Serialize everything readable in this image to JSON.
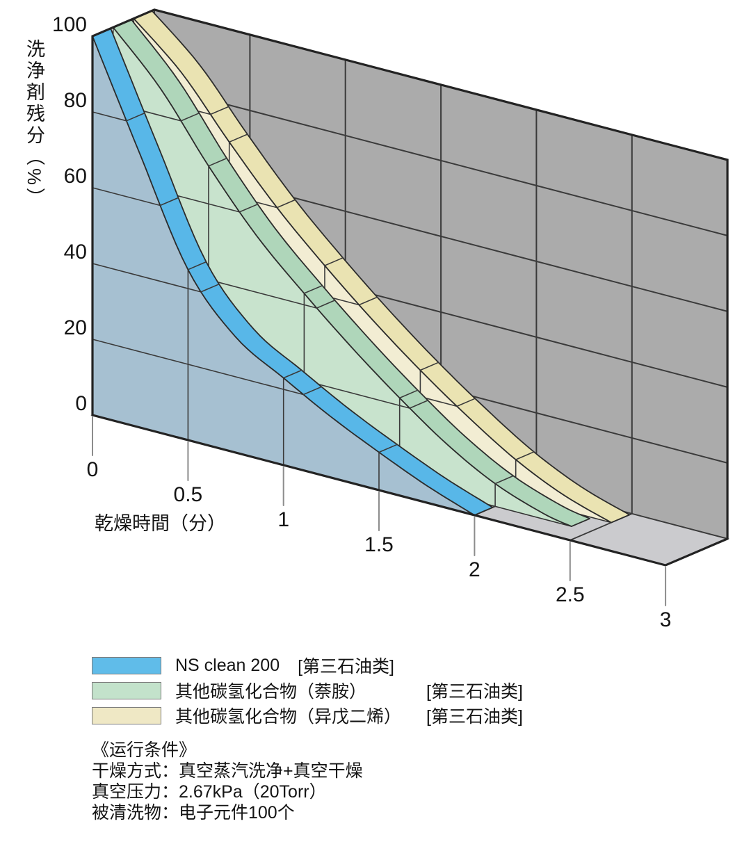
{
  "chart_data": {
    "type": "area",
    "projection": "3d-extruded-area",
    "title": "",
    "xlabel": "乾燥時間（分）",
    "ylabel": "洗浄剤残分（%）",
    "xlim": [
      0,
      3
    ],
    "ylim": [
      0,
      100
    ],
    "x_ticks": [
      0,
      0.5,
      1,
      1.5,
      2,
      2.5,
      3
    ],
    "x_tick_labels": [
      "0",
      "0.5",
      "1",
      "1.5",
      "2",
      "2.5",
      "3"
    ],
    "y_ticks": [
      0,
      20,
      40,
      60,
      80,
      100
    ],
    "y_tick_labels": [
      "0",
      "20",
      "40",
      "60",
      "80",
      "100"
    ],
    "grid": true,
    "wall_color": "#ababab",
    "floor_color": "#cbcbce",
    "grid_color": "#3a3a3a",
    "border_color": "#232323",
    "tick_color": "#8c8c8c",
    "series": [
      {
        "name": "NS clean 200 [第三石油类]",
        "x": [
          0,
          0.25,
          0.5,
          0.75,
          1,
          1.25,
          1.5,
          1.75,
          2
        ],
        "values": [
          100,
          72,
          45,
          30.5,
          23,
          16,
          10,
          4.5,
          0
        ],
        "ribbon_color": "#58b7e8",
        "face_color": "#a6c0d1"
      },
      {
        "name": "其他碳氢化合物（萘胺） [第三石油类]",
        "x": [
          0,
          0.25,
          0.5,
          0.75,
          1,
          1.25,
          1.5,
          1.75,
          2,
          2.25,
          2.4
        ],
        "values": [
          100,
          87,
          70,
          55,
          43,
          32,
          22,
          13,
          6,
          1.5,
          0
        ],
        "ribbon_color": "#afd6ba",
        "face_color": "#c8e3cd"
      },
      {
        "name": "其他碳氢化合物（异戊二烯） [第三石油类]",
        "x": [
          0,
          0.25,
          0.5,
          0.75,
          1,
          1.25,
          1.5,
          1.75,
          2,
          2.25,
          2.5
        ],
        "values": [
          100,
          89,
          74,
          60,
          48,
          37,
          27,
          18,
          10,
          4,
          0
        ],
        "ribbon_color": "#eae3b2",
        "face_color": "#f2edd3"
      }
    ]
  },
  "legend": {
    "items": [
      {
        "label": "NS clean 200",
        "tag": "[第三石油类]",
        "color": "#60bce9"
      },
      {
        "label": "其他碳氢化合物（萘胺）",
        "tag": "[第三石油类]",
        "color": "#c3e2cb"
      },
      {
        "label": "其他碳氢化合物（异戊二烯）",
        "tag": "[第三石油类]",
        "color": "#efe8c5"
      }
    ]
  },
  "conditions": {
    "title": "《运行条件》",
    "lines": [
      "干燥方式：真空蒸汽洗净+真空干燥",
      "真空压力：2.67kPa（20Torr）",
      "被清洗物：电子元件100个"
    ]
  }
}
